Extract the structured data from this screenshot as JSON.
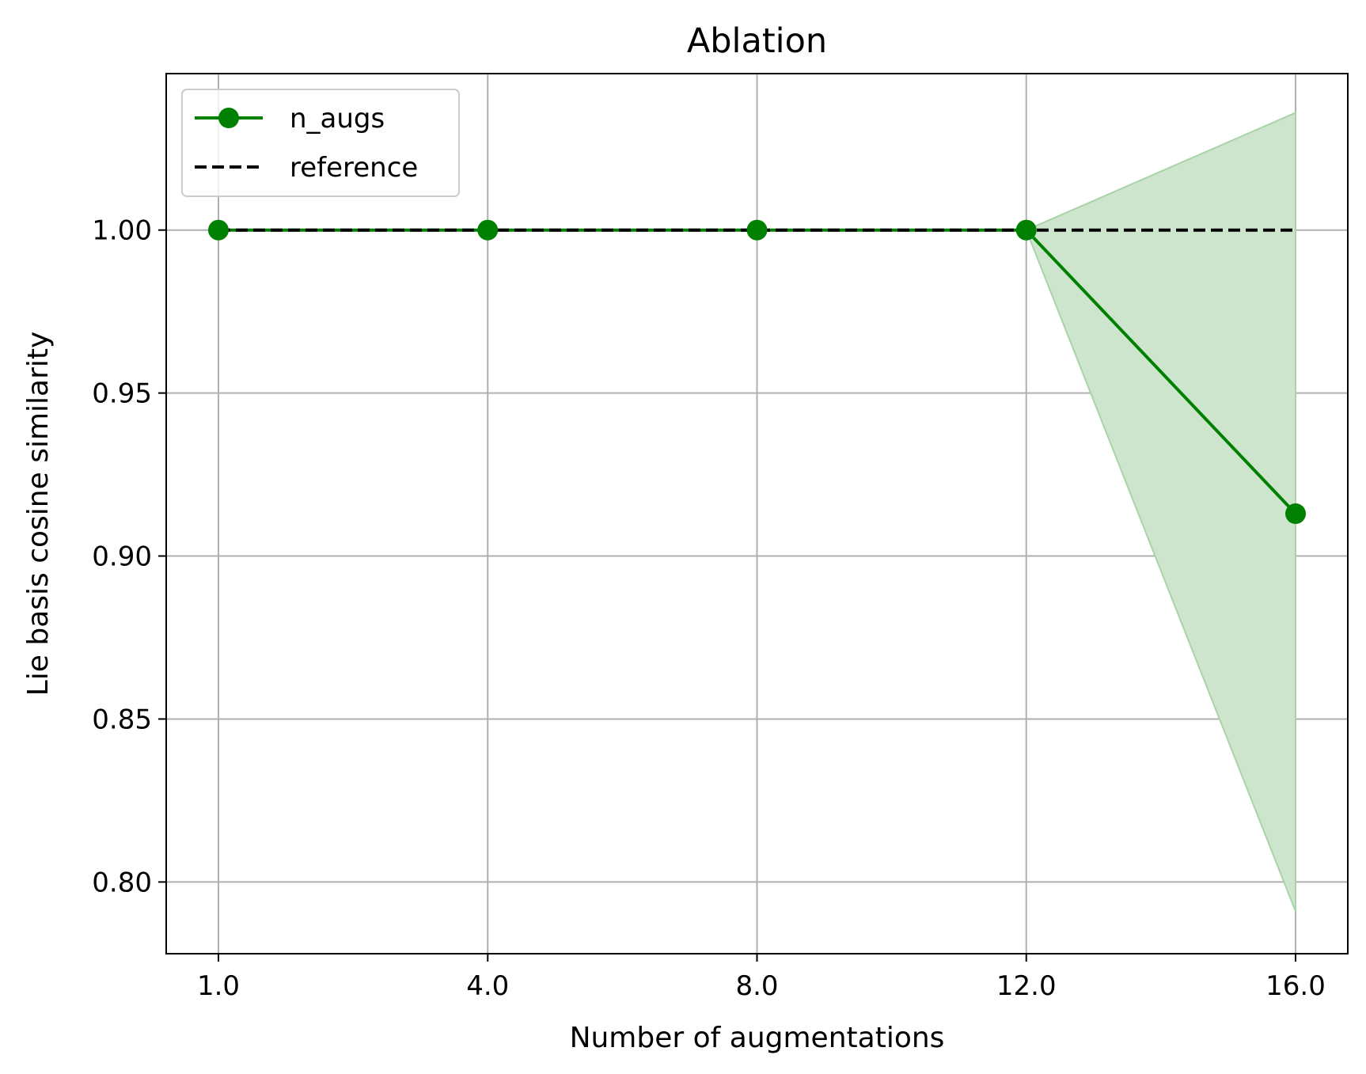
{
  "chart_data": {
    "type": "line",
    "title": "Ablation",
    "xlabel": "Number of augmentations",
    "ylabel": "Lie basis cosine similarity",
    "x": [
      1.0,
      4.0,
      8.0,
      12.0,
      16.0
    ],
    "x_tick_labels": [
      "1.0",
      "4.0",
      "8.0",
      "12.0",
      "16.0"
    ],
    "y_ticks": [
      0.8,
      0.85,
      0.9,
      0.95,
      1.0
    ],
    "y_tick_labels": [
      "0.80",
      "0.85",
      "0.90",
      "0.95",
      "1.00"
    ],
    "ylim": [
      0.778,
      1.048
    ],
    "grid": true,
    "legend_position": "top-left",
    "series": [
      {
        "name": "n_augs",
        "color": "#008000",
        "marker": "circle",
        "values": [
          1.0,
          1.0,
          1.0,
          1.0,
          0.913
        ],
        "band_lower": [
          1.0,
          1.0,
          1.0,
          1.0,
          0.791
        ],
        "band_upper": [
          1.0,
          1.0,
          1.0,
          1.0,
          1.036
        ],
        "band_color": "#cde5cd"
      },
      {
        "name": "reference",
        "color": "#000000",
        "linestyle": "dashed",
        "values": [
          1.0,
          1.0,
          1.0,
          1.0,
          1.0
        ]
      }
    ]
  }
}
